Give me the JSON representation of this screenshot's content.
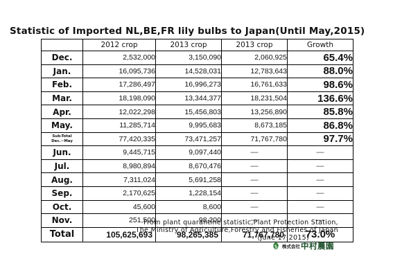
{
  "title": "Statistic of Imported NL,BE,FR lily bulbs to Japan(Until May,2015)",
  "table": {
    "headers": [
      "",
      "2012 crop",
      "2013 crop",
      "2013 crop",
      "Growth"
    ],
    "rows": [
      {
        "label": "Dec.",
        "c1": "2,532,000",
        "c2": "3,150,090",
        "c3": "2,060,925",
        "growth": "65.4%"
      },
      {
        "label": "Jan.",
        "c1": "16,095,736",
        "c2": "14,528,031",
        "c3": "12,783,643",
        "growth": "88.0%"
      },
      {
        "label": "Feb.",
        "c1": "17,286,497",
        "c2": "16,996,273",
        "c3": "16,761,633",
        "growth": "98.6%"
      },
      {
        "label": "Mar.",
        "c1": "18,198,090",
        "c2": "13,344,377",
        "c3": "18,231,504",
        "growth": "136.6%"
      },
      {
        "label": "Apr.",
        "c1": "12,022,298",
        "c2": "15,456,803",
        "c3": "13,256,890",
        "growth": "85.8%"
      },
      {
        "label": "May.",
        "c1": "11,285,714",
        "c2": "9,995,683",
        "c3": "8,673,185",
        "growth": "86.8%"
      },
      {
        "label_line1": "Sub-Total",
        "label_line2": "Dec.~May",
        "c1": "77,420,335",
        "c2": "73,471,257",
        "c3": "71,767,780",
        "growth": "97.7%"
      },
      {
        "label": "Jun.",
        "c1": "9,445,715",
        "c2": "9,097,440",
        "c3": "—",
        "growth": "—"
      },
      {
        "label": "Jul.",
        "c1": "8,980,894",
        "c2": "8,670,476",
        "c3": "—",
        "growth": "—"
      },
      {
        "label": "Aug.",
        "c1": "7,311,024",
        "c2": "5,691,258",
        "c3": "—",
        "growth": "—"
      },
      {
        "label": "Sep.",
        "c1": "2,170,625",
        "c2": "1,228,154",
        "c3": "—",
        "growth": "—"
      },
      {
        "label": "Oct.",
        "c1": "45,600",
        "c2": "8,600",
        "c3": "—",
        "growth": "—"
      },
      {
        "label": "Nov.",
        "c1": "251,500",
        "c2": "98,200",
        "c3": "—",
        "growth": "—"
      }
    ],
    "total": {
      "label": "Total",
      "c1": "105,625,693",
      "c2": "98,265,385",
      "c3": "71,767,780",
      "growth": "73.0%"
    }
  },
  "source": {
    "line1": "From plant quarantine statistic,Plant Protection Station,",
    "line2": "The Ministry of Agriculture,Forestry and Fisheries of Japan",
    "date": "(June 17,2015)"
  },
  "logo": {
    "small_text": "株式会社",
    "name": "中村農園",
    "color": "#1d4f2a"
  }
}
